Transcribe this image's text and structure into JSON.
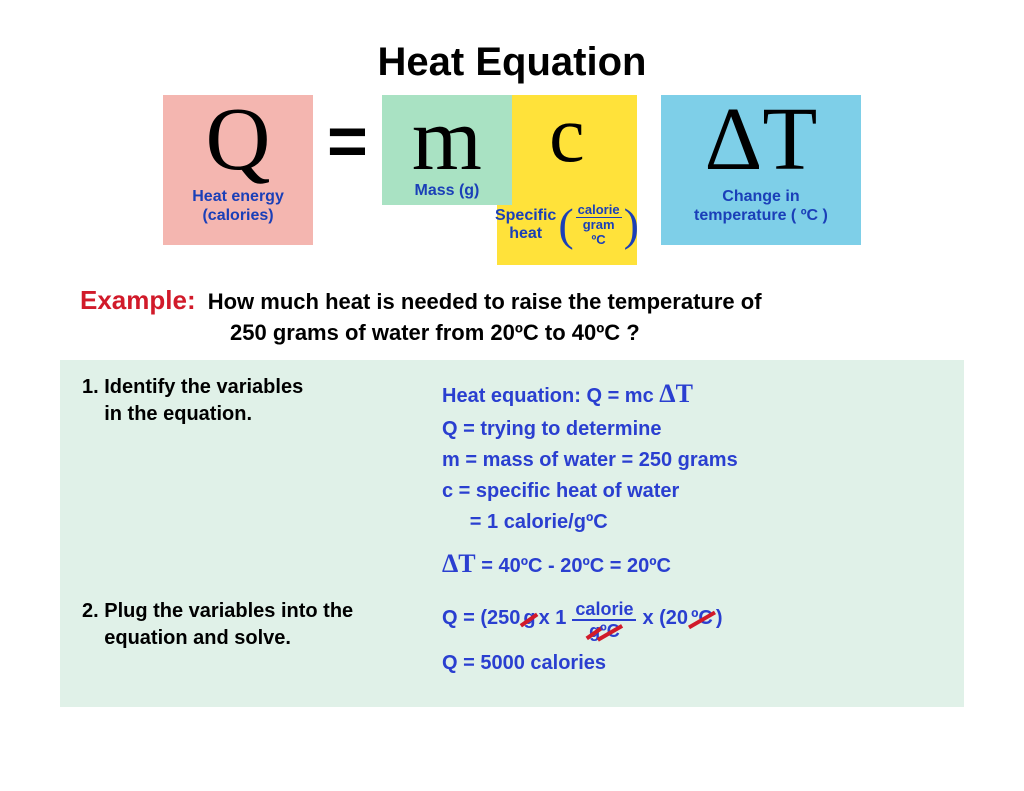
{
  "title": "Heat Equation",
  "colors": {
    "q_bg": "#f4b6b0",
    "m_bg": "#a9e2c3",
    "c_bg": "#ffe23a",
    "dt_bg": "#7ecfe8",
    "caption_blue": "#1a3fb8",
    "example_red": "#d11a2a",
    "workbox_bg": "#e0f1e8",
    "step_right_blue": "#2a3fd0",
    "black": "#000000"
  },
  "equation": {
    "q": {
      "letter": "Q",
      "caption": "Heat energy\n(calories)"
    },
    "equals": "=",
    "m": {
      "letter": "m",
      "caption": "Mass (g)"
    },
    "c": {
      "letter": "c",
      "label": "Specific\nheat",
      "frac_num": "calorie",
      "frac_den": "gram ºC"
    },
    "dt": {
      "letter": "ΔT",
      "caption": "Change in\ntemperature ( ºC )"
    }
  },
  "example": {
    "label": "Example:",
    "text_line1": "How much heat is needed to raise the temperature of",
    "text_line2": "250 grams of water from 20ºC to 40ºC ?"
  },
  "steps": {
    "s1": {
      "left": "1. Identify the variables\n    in the equation.",
      "r1a": "Heat equation: Q = mc ",
      "r1b": "ΔT",
      "r2": "Q = trying to determine",
      "r3": "m = mass of water = 250 grams",
      "r4": "c = specific heat of water",
      "r5": "     = 1 calorie/gºC",
      "r6a": "ΔT",
      "r6b": "  = 40ºC - 20ºC = 20ºC"
    },
    "s2": {
      "left": "2. Plug the variables into the\n    equation and solve.",
      "plug": {
        "pre": "Q = (250 ",
        "g1": "g",
        "mid1": " x 1 ",
        "frac_num": "calorie",
        "den_g": "g",
        "den_rest": " ºC",
        "mid2": " x (20",
        "degC": "ºC",
        "end": " )"
      },
      "result": "Q = 5000 calories"
    }
  }
}
